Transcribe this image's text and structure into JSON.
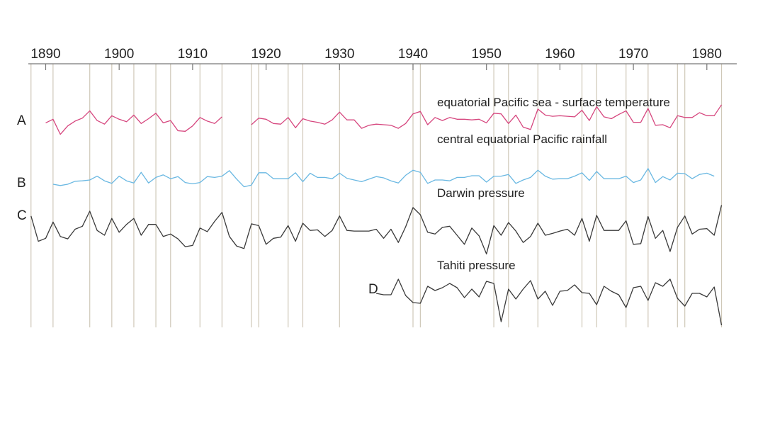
{
  "chart_data": {
    "type": "line",
    "title": "",
    "xlabel": "",
    "ylabel": "",
    "xlim": [
      1887.5,
      1982.5
    ],
    "grid": "vertical lines at peak years",
    "legend": "none; each series labelled in place",
    "x_ticks": [
      1890,
      1900,
      1910,
      1920,
      1930,
      1940,
      1950,
      1960,
      1970,
      1980
    ],
    "marker_years": [
      1888,
      1891,
      1896,
      1899,
      1902,
      1905,
      1907,
      1911,
      1914,
      1918,
      1919,
      1923,
      1925,
      1930,
      1940,
      1941,
      1951,
      1953,
      1957,
      1963,
      1965,
      1969,
      1972,
      1976,
      1977,
      1982
    ],
    "series": [
      {
        "letter": "A",
        "name": "equatorial Pacific sea - surface temperature",
        "color": "#d6467e",
        "segments": [
          {
            "x": [
              1890,
              1891,
              1892,
              1893,
              1894,
              1895,
              1896,
              1897,
              1898,
              1899,
              1900,
              1901,
              1902,
              1903,
              1904,
              1905,
              1906,
              1907,
              1908,
              1909,
              1910,
              1911,
              1912,
              1913,
              1914
            ],
            "y": [
              0.3,
              0.9,
              -1.6,
              -0.2,
              0.6,
              1.1,
              2.3,
              0.7,
              0.1,
              1.5,
              0.9,
              0.5,
              1.6,
              0.2,
              1.0,
              1.9,
              0.3,
              0.7,
              -1.0,
              -1.1,
              -0.2,
              1.2,
              0.6,
              0.2,
              1.3
            ]
          },
          {
            "x": [
              1918,
              1919,
              1920,
              1921,
              1922,
              1923,
              1924,
              1925,
              1926,
              1927,
              1928,
              1929,
              1930,
              1931,
              1932,
              1933,
              1934,
              1935,
              1936,
              1937,
              1938,
              1939,
              1940,
              1941,
              1942,
              1943,
              1944,
              1945,
              1946,
              1947,
              1948,
              1949,
              1950,
              1951,
              1952,
              1953,
              1954,
              1955,
              1956,
              1957,
              1958,
              1959,
              1960,
              1961,
              1962,
              1963,
              1964,
              1965,
              1966,
              1967,
              1968,
              1969,
              1970,
              1971,
              1972,
              1973,
              1974,
              1975,
              1976,
              1977,
              1978,
              1979,
              1980,
              1981,
              1982
            ],
            "y": [
              0.0,
              1.1,
              0.9,
              0.2,
              0.1,
              1.2,
              -0.5,
              1.0,
              0.6,
              0.4,
              0.1,
              0.8,
              2.1,
              0.8,
              0.8,
              -0.6,
              -0.1,
              0.1,
              0.0,
              -0.1,
              -0.6,
              0.2,
              1.8,
              2.2,
              0.0,
              1.2,
              0.7,
              1.2,
              0.9,
              0.9,
              0.8,
              0.9,
              0.3,
              1.9,
              1.8,
              0.2,
              1.6,
              -0.4,
              -0.8,
              2.6,
              1.6,
              1.4,
              1.5,
              1.4,
              1.3,
              2.4,
              0.7,
              3.0,
              1.3,
              1.0,
              1.7,
              2.3,
              0.4,
              0.4,
              2.7,
              -0.1,
              0.0,
              -0.5,
              1.5,
              1.2,
              1.2,
              2.0,
              1.5,
              1.5,
              3.3
            ]
          }
        ]
      },
      {
        "letter": "B",
        "name": "central equatorial Pacific rainfall",
        "color": "#6ab8e2",
        "segments": [
          {
            "x": [
              1891,
              1892,
              1893,
              1894,
              1895,
              1896,
              1897,
              1898,
              1899,
              1900,
              1901,
              1902,
              1903,
              1904,
              1905,
              1906,
              1907,
              1908,
              1909,
              1910,
              1911,
              1912,
              1913,
              1914,
              1915,
              1916,
              1917,
              1918,
              1919,
              1920,
              1921,
              1922,
              1923,
              1924,
              1925,
              1926,
              1927,
              1928,
              1929,
              1930,
              1931,
              1932,
              1933,
              1934,
              1935,
              1936,
              1937,
              1938,
              1939,
              1940,
              1941,
              1942,
              1943,
              1944,
              1945,
              1946,
              1947,
              1948,
              1949,
              1950,
              1951,
              1952,
              1953,
              1954,
              1955,
              1956,
              1957,
              1958,
              1959,
              1960,
              1961,
              1962,
              1963,
              1964,
              1965,
              1966,
              1967,
              1968,
              1969,
              1970,
              1971,
              1972,
              1973,
              1974,
              1975,
              1976,
              1977,
              1978,
              1979,
              1980,
              1981
            ],
            "y": [
              0.0,
              -0.3,
              0.0,
              0.7,
              0.8,
              1.0,
              1.9,
              0.8,
              0.2,
              1.9,
              0.8,
              0.3,
              2.8,
              0.3,
              1.6,
              2.2,
              1.3,
              1.8,
              0.4,
              0.1,
              0.4,
              1.8,
              1.6,
              1.9,
              3.2,
              1.2,
              -0.6,
              -0.2,
              2.7,
              2.7,
              1.3,
              1.3,
              1.3,
              2.7,
              0.6,
              2.6,
              1.6,
              1.6,
              1.3,
              2.6,
              1.4,
              1.0,
              0.6,
              1.2,
              1.8,
              1.5,
              0.8,
              0.3,
              2.1,
              3.3,
              2.8,
              0.2,
              1.0,
              1.0,
              0.8,
              1.6,
              1.6,
              2.0,
              2.0,
              0.5,
              1.9,
              1.9,
              2.3,
              0.2,
              1.0,
              1.6,
              3.3,
              1.9,
              1.2,
              1.3,
              1.3,
              1.9,
              2.7,
              0.9,
              3.0,
              1.3,
              1.3,
              1.3,
              1.9,
              0.4,
              1.0,
              3.7,
              0.4,
              1.8,
              1.0,
              2.6,
              2.5,
              1.3,
              2.3,
              2.6,
              1.9
            ]
          }
        ]
      },
      {
        "letter": "C",
        "name": "Darwin pressure",
        "color": "#3a3a3a",
        "segments": [
          {
            "x": [
              1888,
              1889,
              1890,
              1891,
              1892,
              1893,
              1894,
              1895,
              1896,
              1897,
              1898,
              1899,
              1900,
              1901,
              1902,
              1903,
              1904,
              1905,
              1906,
              1907,
              1908,
              1909,
              1910,
              1911,
              1912,
              1913,
              1914,
              1915,
              1916,
              1917,
              1918,
              1919,
              1920,
              1921,
              1922,
              1923,
              1924,
              1925,
              1926,
              1927,
              1928,
              1929,
              1930,
              1931,
              1932,
              1933,
              1934,
              1935,
              1936,
              1937,
              1938,
              1939,
              1940,
              1941,
              1942,
              1943,
              1944,
              1945,
              1946,
              1947,
              1948,
              1949,
              1950,
              1951,
              1952,
              1953,
              1954,
              1955,
              1956,
              1957,
              1958,
              1959,
              1960,
              1961,
              1962,
              1963,
              1964,
              1965,
              1966,
              1967,
              1968,
              1969,
              1970,
              1971,
              1972,
              1973,
              1974,
              1975,
              1976,
              1977,
              1978,
              1979,
              1980,
              1981,
              1982
            ],
            "y": [
              3.2,
              -1.0,
              -0.5,
              2.2,
              -0.2,
              -0.6,
              1.0,
              1.5,
              4.0,
              0.8,
              0.0,
              2.8,
              0.5,
              1.8,
              2.8,
              0.0,
              1.8,
              1.8,
              -0.2,
              0.2,
              -0.6,
              -1.9,
              -1.7,
              1.2,
              0.6,
              2.3,
              3.8,
              -0.2,
              -1.8,
              -2.2,
              1.9,
              1.6,
              -1.5,
              -0.5,
              -0.3,
              1.6,
              -1.0,
              2.0,
              0.8,
              0.9,
              -0.2,
              0.8,
              3.2,
              0.8,
              0.7,
              0.7,
              0.7,
              1.0,
              -0.5,
              1.0,
              -1.2,
              1.4,
              4.6,
              3.4,
              0.5,
              0.2,
              1.3,
              1.5,
              0.0,
              -1.5,
              1.2,
              -0.1,
              -3.1,
              1.6,
              0.0,
              2.1,
              0.7,
              -1.2,
              -0.2,
              2.0,
              0.0,
              0.3,
              0.7,
              1.0,
              0.0,
              2.8,
              -1.0,
              3.3,
              0.8,
              0.8,
              0.8,
              2.4,
              -1.5,
              -1.4,
              3.1,
              -0.5,
              0.8,
              -2.7,
              1.3,
              3.2,
              0.2,
              1.0,
              1.1,
              0.0,
              5.0
            ]
          }
        ]
      },
      {
        "letter": "D",
        "name": "Tahiti pressure",
        "color": "#3a3a3a",
        "segments": [
          {
            "x": [
              1935,
              1936,
              1937,
              1938,
              1939,
              1940,
              1941,
              1942,
              1943,
              1944,
              1945,
              1946,
              1947,
              1948,
              1949,
              1950,
              1951,
              1952,
              1953,
              1954,
              1955,
              1956,
              1957,
              1958,
              1959,
              1960,
              1961,
              1962,
              1963,
              1964,
              1965,
              1966,
              1967,
              1968,
              1969,
              1970,
              1971,
              1972,
              1973,
              1974,
              1975,
              1976,
              1977,
              1978,
              1979,
              1980,
              1981,
              1982
            ],
            "y": [
              1.0,
              0.8,
              0.8,
              3.0,
              0.7,
              -0.3,
              -0.4,
              2.0,
              1.4,
              1.8,
              2.4,
              1.8,
              0.4,
              1.6,
              0.5,
              2.7,
              2.4,
              -3.0,
              1.6,
              0.2,
              1.6,
              2.8,
              0.2,
              1.3,
              -0.7,
              1.3,
              1.4,
              2.2,
              1.1,
              1.0,
              -0.6,
              2.0,
              1.3,
              0.8,
              -1.0,
              1.8,
              2.0,
              0.0,
              2.5,
              2.0,
              3.0,
              0.3,
              -0.8,
              1.0,
              1.0,
              0.5,
              1.9,
              -3.5
            ]
          }
        ]
      }
    ]
  }
}
